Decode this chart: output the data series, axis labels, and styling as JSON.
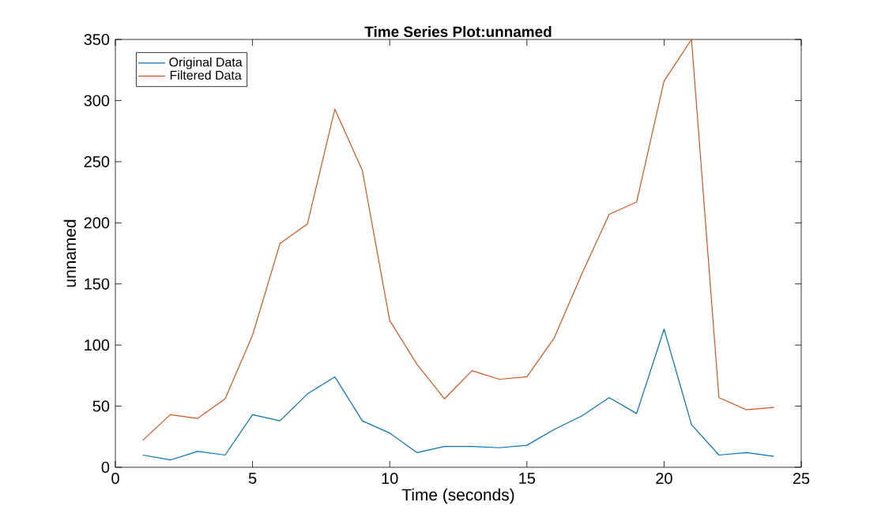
{
  "chart_data": {
    "type": "line",
    "title": "Time Series Plot:unnamed",
    "xlabel": "Time (seconds)",
    "ylabel": "unnamed",
    "x": [
      1,
      2,
      3,
      4,
      5,
      6,
      7,
      8,
      9,
      10,
      11,
      12,
      13,
      14,
      15,
      16,
      17,
      18,
      19,
      20,
      21,
      22,
      23,
      24
    ],
    "series": [
      {
        "name": "Original Data",
        "color": "#0072bd",
        "values": [
          10,
          6,
          13,
          10,
          43,
          38,
          60,
          74,
          38,
          28,
          12,
          17,
          17,
          16,
          18,
          31,
          42,
          57,
          44,
          113,
          35,
          10,
          12,
          9
        ]
      },
      {
        "name": "Filtered Data",
        "color": "#d95319",
        "values": [
          22,
          43,
          40,
          56,
          108,
          183,
          199,
          293,
          243,
          120,
          84,
          56,
          79,
          72,
          74,
          106,
          158,
          207,
          217,
          316,
          350,
          57,
          47,
          49
        ]
      }
    ],
    "xlim": [
      0,
      25
    ],
    "ylim": [
      0,
      350
    ],
    "xticks": [
      0,
      5,
      10,
      15,
      20,
      25
    ],
    "yticks": [
      0,
      50,
      100,
      150,
      200,
      250,
      300,
      350
    ],
    "grid": false,
    "legend": "top left",
    "marker": "none",
    "line_style": "solid"
  }
}
